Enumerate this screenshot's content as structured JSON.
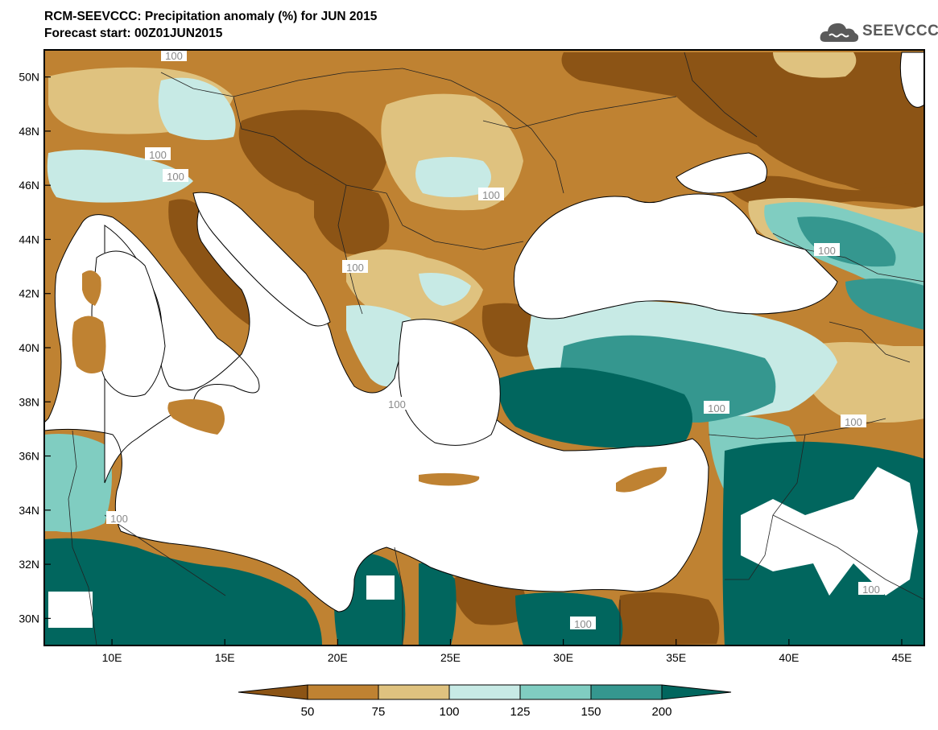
{
  "header": {
    "title": "RCM-SEEVCCC: Precipitation anomaly (%) for JUN 2015",
    "subtitle": "Forecast start: 00Z01JUN2015",
    "logo_text": "SEEVCCC"
  },
  "map": {
    "lon_range": [
      7,
      46
    ],
    "lat_range": [
      29,
      51
    ],
    "lat_ticks": [
      "30N",
      "32N",
      "34N",
      "36N",
      "38N",
      "40N",
      "42N",
      "44N",
      "46N",
      "48N",
      "50N"
    ],
    "lon_ticks": [
      "10E",
      "15E",
      "20E",
      "25E",
      "30E",
      "35E",
      "40E",
      "45E"
    ],
    "contour_labels": [
      "100",
      "100",
      "100",
      "100",
      "100",
      "100",
      "100",
      "100",
      "100",
      "100",
      "100",
      "100"
    ]
  },
  "colorbar": {
    "levels": [
      "50",
      "75",
      "100",
      "125",
      "150",
      "200"
    ],
    "colors": [
      "#8c5415",
      "#bf8232",
      "#dfc27f",
      "#c7eae5",
      "#80cdc1",
      "#35978f",
      "#01665e"
    ]
  },
  "colors": {
    "very_dry": "#8c5415",
    "dry": "#bf8232",
    "slightly_dry": "#dfc27f",
    "slightly_wet": "#c7eae5",
    "wet": "#80cdc1",
    "very_wet": "#35978f",
    "extreme_wet": "#01665e",
    "sea": "#ffffff"
  }
}
